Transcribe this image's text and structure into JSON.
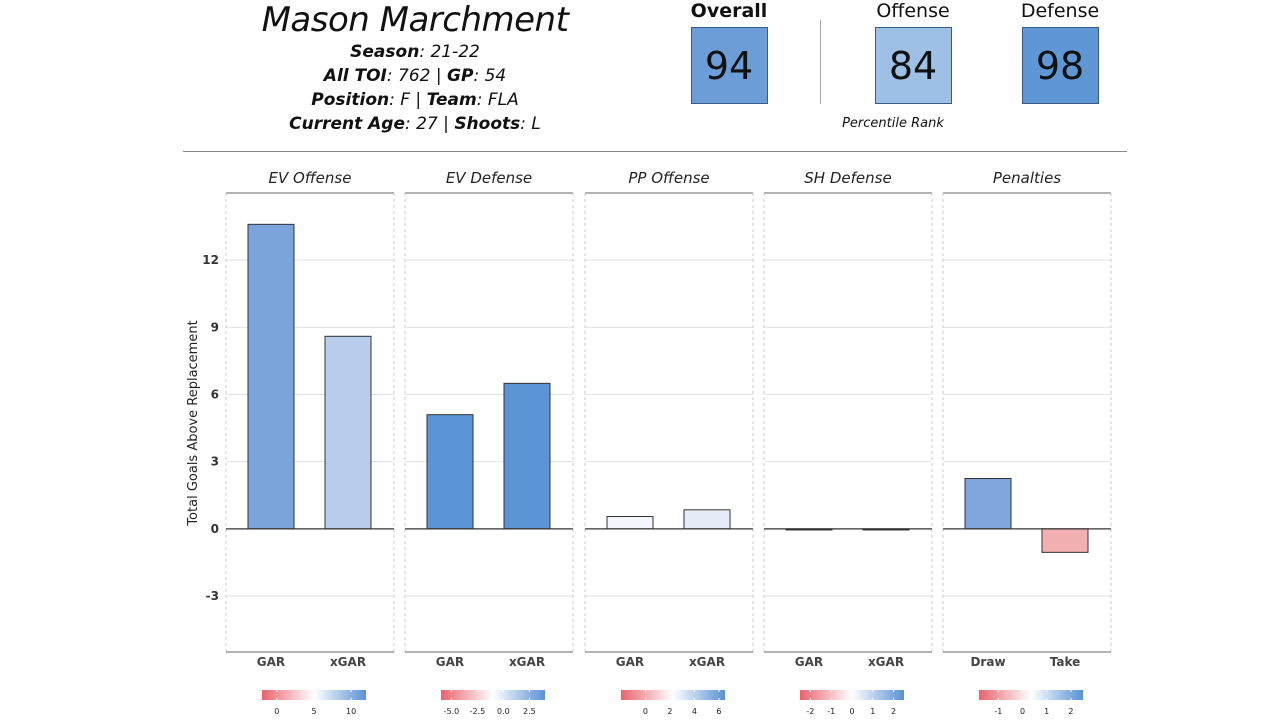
{
  "player": {
    "name": "Mason Marchment",
    "season_label": "Season",
    "season_value": ": 21-22",
    "toi_label": "All TOI",
    "toi_value": ": 762 | ",
    "gp_label": "GP",
    "gp_value": ": 54",
    "position_label": "Position",
    "position_value": ": F | ",
    "team_label": "Team",
    "team_value": ": FLA",
    "age_label": "Current Age",
    "age_value": ": 27 | ",
    "shoots_label": "Shoots",
    "shoots_value": ": L"
  },
  "ratings": {
    "overall": {
      "label": "Overall",
      "value": "94",
      "color": "#6d9dd6"
    },
    "offense": {
      "label": "Offense",
      "value": "84",
      "color": "#9ebfe6"
    },
    "defense": {
      "label": "Defense",
      "value": "98",
      "color": "#5f96d6"
    },
    "caption": "Percentile Rank"
  },
  "chart_data": {
    "type": "bar",
    "ylabel": "Total Goals Above Replacement",
    "ylim": [
      -5.5,
      15
    ],
    "yticks": [
      -3,
      0,
      3,
      6,
      9,
      12
    ],
    "grid": true,
    "panels": [
      {
        "title": "EV Offense",
        "categories": [
          "GAR",
          "xGAR"
        ],
        "values": [
          13.6,
          8.6
        ],
        "colors": [
          "#7ba4dc",
          "#b8cdeb"
        ],
        "legend": {
          "ticks": [
            "0",
            "5",
            "10"
          ],
          "range": [
            -2,
            12
          ],
          "tickvals": [
            0,
            5,
            10
          ]
        }
      },
      {
        "title": "EV Defense",
        "categories": [
          "GAR",
          "xGAR"
        ],
        "values": [
          5.1,
          6.5
        ],
        "colors": [
          "#5b95d5",
          "#5b95d5"
        ],
        "legend": {
          "ticks": [
            "-5.0",
            "-2.5",
            "0.0",
            "2.5"
          ],
          "range": [
            -6,
            4
          ],
          "tickvals": [
            -5,
            -2.5,
            0,
            2.5
          ]
        }
      },
      {
        "title": "PP Offense",
        "categories": [
          "GAR",
          "xGAR"
        ],
        "values": [
          0.55,
          0.85
        ],
        "colors": [
          "#f3f6fc",
          "#e6edf8"
        ],
        "legend": {
          "ticks": [
            "0",
            "2",
            "4",
            "6"
          ],
          "range": [
            -2,
            6.5
          ],
          "tickvals": [
            0,
            2,
            4,
            6
          ]
        }
      },
      {
        "title": "SH Defense",
        "categories": [
          "GAR",
          "xGAR"
        ],
        "values": [
          -0.05,
          -0.05
        ],
        "colors": [
          "#f4f4f4",
          "#f4f4f4"
        ],
        "legend": {
          "ticks": [
            "-2",
            "-1",
            "0",
            "1",
            "2"
          ],
          "range": [
            -2.5,
            2.5
          ],
          "tickvals": [
            -2,
            -1,
            0,
            1,
            2
          ]
        }
      },
      {
        "title": "Penalties",
        "categories": [
          "Draw",
          "Take"
        ],
        "values": [
          2.25,
          -1.05
        ],
        "colors": [
          "#80a7dd",
          "#f2b0b3"
        ],
        "legend": {
          "ticks": [
            "-1",
            "0",
            "1",
            "2"
          ],
          "range": [
            -1.8,
            2.5
          ],
          "tickvals": [
            -1,
            0,
            1,
            2
          ]
        }
      }
    ]
  },
  "colors": {
    "negative": "#e8636d",
    "neutral": "#ffffff",
    "positive": "#5a92d4"
  }
}
